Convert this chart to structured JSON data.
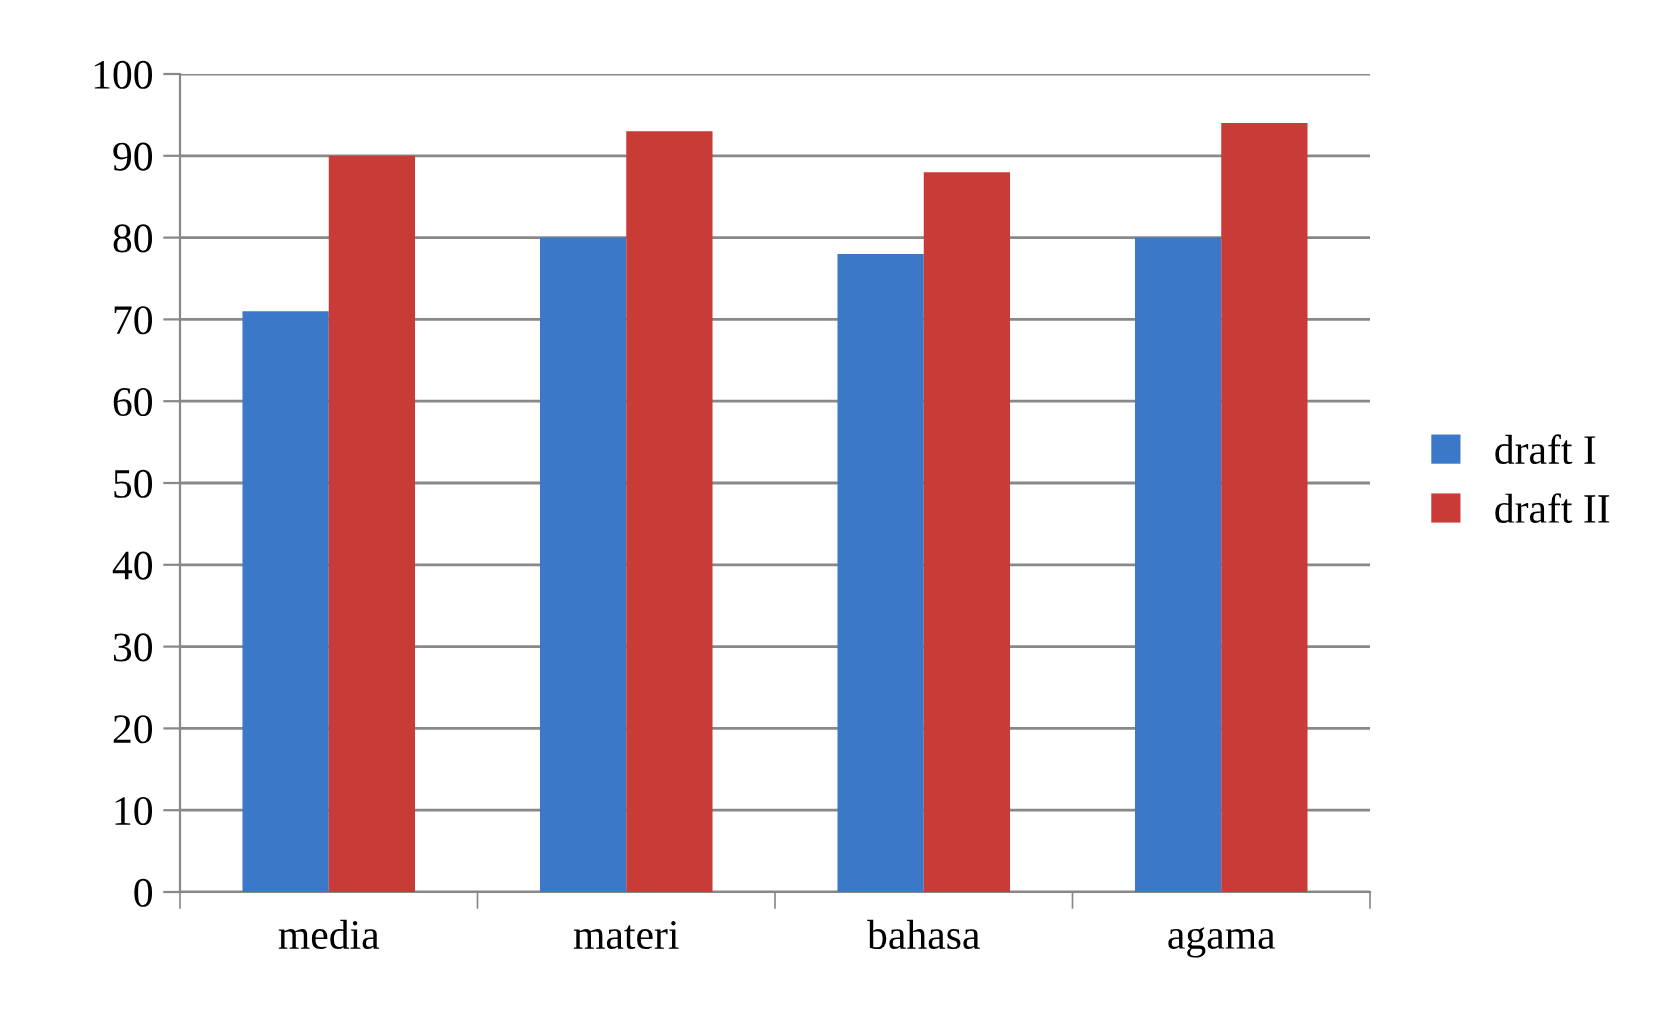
{
  "chart_data": {
    "type": "bar",
    "categories": [
      "media",
      "materi",
      "bahasa",
      "agama"
    ],
    "series": [
      {
        "name": "draft I",
        "color": "#3b78c8",
        "values": [
          71,
          80,
          78,
          80
        ]
      },
      {
        "name": "draft II",
        "color": "#c93b37",
        "values": [
          90,
          93,
          88,
          94
        ]
      }
    ],
    "ylim": [
      0,
      100
    ],
    "yticks": [
      0,
      10,
      20,
      30,
      40,
      50,
      60,
      70,
      80,
      90,
      100
    ],
    "grid": "y",
    "legend": "right"
  }
}
